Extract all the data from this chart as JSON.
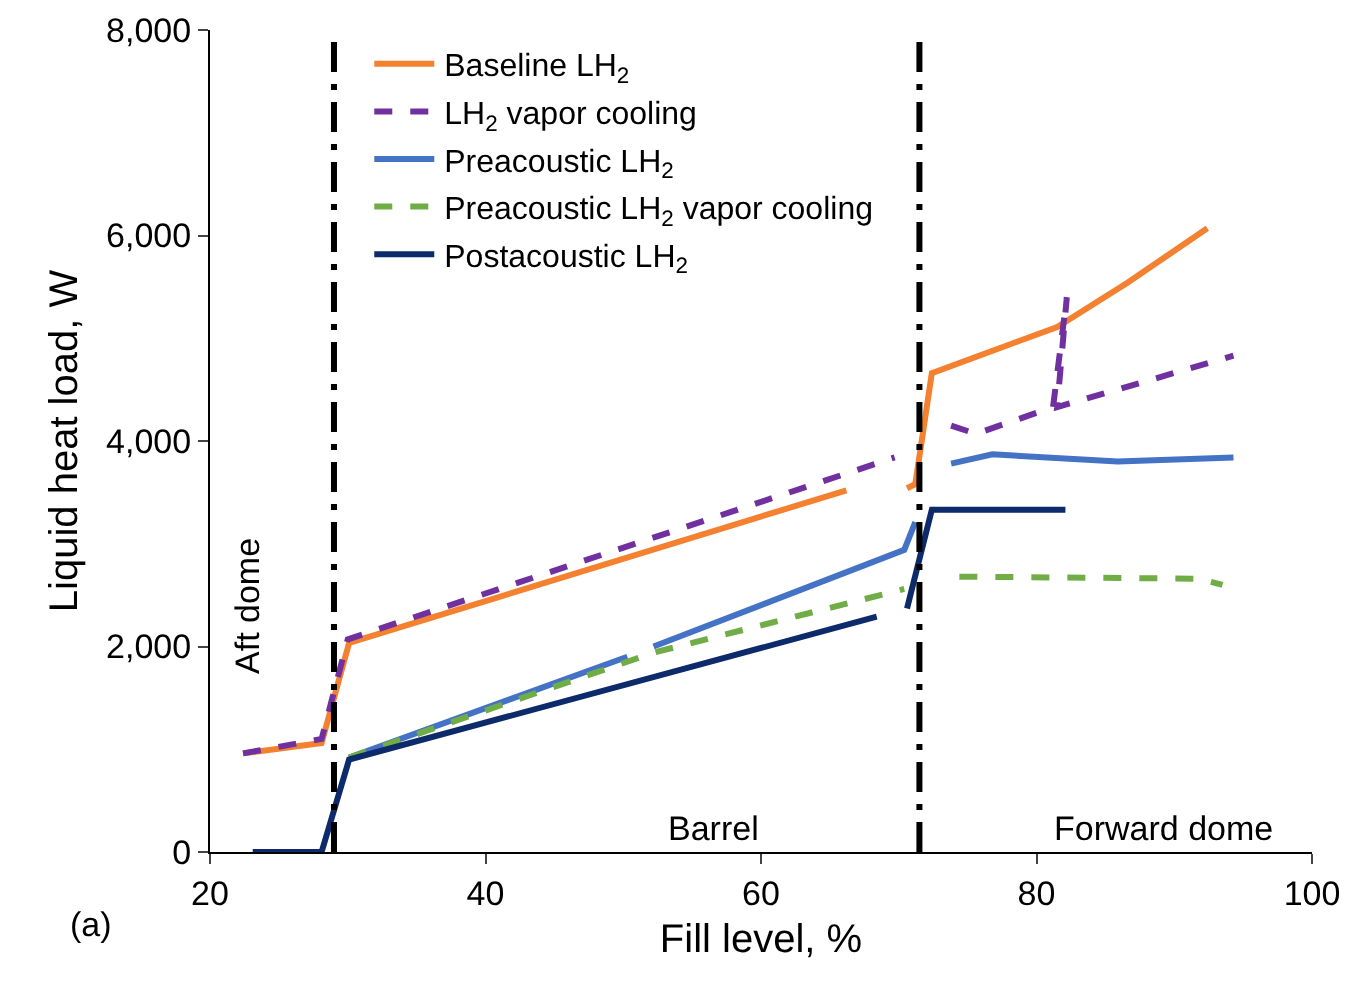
{
  "chart_data": {
    "type": "line",
    "xlabel": "Fill level, %",
    "ylabel": "Liquid heat load, W",
    "xlim": [
      20,
      100
    ],
    "xticks": [
      20,
      40,
      60,
      80,
      100
    ],
    "ylim": [
      0,
      8000
    ],
    "yticks": [
      {
        "value": 0,
        "label": "0"
      },
      {
        "value": 2000,
        "label": "2,000"
      },
      {
        "value": 4000,
        "label": "4,000"
      },
      {
        "value": 6000,
        "label": "6,000"
      },
      {
        "value": 8000,
        "label": "8,000"
      }
    ],
    "grid": false,
    "legend": "top left",
    "marker": "none",
    "series": [
      {
        "name": "Baseline LH$_{2}$",
        "color": "#f4812f",
        "line_style": "solid",
        "x": [
          22.4,
          28.1,
          30.1,
          66.2,
          68,
          70.6,
          71.2,
          72.4,
          81.5,
          86.6,
          92.4
        ],
        "values": [
          960,
          1060,
          2035,
          3520,
          null,
          3540,
          3580,
          4660,
          5110,
          5540,
          6070
        ]
      },
      {
        "name": "LH$_{2}$ vapor cooling",
        "color": "#7030a0",
        "line_style": "dashed",
        "x": [
          22.4,
          28.1,
          30,
          69.7,
          72,
          73.8,
          75.6,
          81.2,
          82.2,
          81.5,
          94.3
        ],
        "values": [
          960,
          1100,
          2070,
          3840,
          null,
          4150,
          4070,
          4330,
          5400,
          4330,
          4830
        ]
      },
      {
        "name": "Preacoustic LH$_{2}$",
        "color": "#4472c4",
        "line_style": "solid",
        "x": [
          30.1,
          50.3,
          51.2,
          52.2,
          70.4,
          71.2,
          72.5,
          73.8,
          76.8,
          85.9,
          94.3
        ],
        "values": [
          920,
          1900,
          null,
          2000,
          2940,
          3210,
          null,
          3780,
          3870,
          3800,
          3840
        ]
      },
      {
        "name": "Preacoustic LH$_{2}$ vapor cooling",
        "color": "#70ad47",
        "line_style": "dashed",
        "x": [
          30.1,
          52.2,
          70.4,
          72.5,
          74.4,
          91.8,
          93.5
        ],
        "values": [
          920,
          1940,
          2560,
          null,
          2680,
          2660,
          2600
        ]
      },
      {
        "name": "Postacoustic LH$_{2}$",
        "color": "#0d2a6b",
        "line_style": "solid",
        "x": [
          23.1,
          28.1,
          30.1,
          68.4,
          69.5,
          70.6,
          72.4,
          82.1
        ],
        "values": [
          0,
          0,
          900,
          2290,
          null,
          2370,
          3330,
          3330
        ]
      }
    ],
    "ref_lines": [
      {
        "axis": "x",
        "value": 29,
        "line_style": "dashdot",
        "color": "#000000"
      },
      {
        "axis": "x",
        "value": 71.5,
        "line_style": "dashdot",
        "color": "#000000"
      }
    ],
    "annotations": [
      "Aft dome",
      "Barrel",
      "Forward dome",
      "(a)"
    ]
  }
}
